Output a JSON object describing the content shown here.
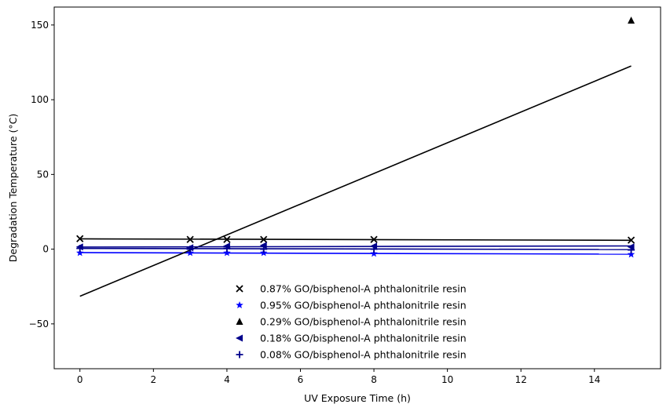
{
  "chart_data": {
    "type": "scatter",
    "title": "",
    "xlabel": "UV Exposure Time (h)",
    "ylabel": "Degradation Temperature (°C)",
    "xlim": [
      -0.7,
      15.8
    ],
    "ylim": [
      -80,
      162
    ],
    "xticks": [
      0,
      2,
      4,
      6,
      8,
      10,
      12,
      14
    ],
    "xtick_labels": [
      "0",
      "2",
      "4",
      "6",
      "8",
      "10",
      "12",
      "14"
    ],
    "yticks": [
      -50,
      0,
      50,
      100,
      150
    ],
    "ytick_labels": [
      "−50",
      "0",
      "50",
      "100",
      "150"
    ],
    "grid": false,
    "legend_position": "lower-center",
    "series": [
      {
        "name": "0.87% GO/bisphenol-A phthalonitrile resin",
        "marker": "x",
        "color": "#000000",
        "x": [
          0,
          3,
          4,
          5,
          8,
          15
        ],
        "y": [
          7,
          6.5,
          6.5,
          6.5,
          6.5,
          6
        ],
        "fit": {
          "slope": -0.065,
          "intercept": 6.9
        }
      },
      {
        "name": "0.95% GO/bisphenol-A phthalonitrile resin",
        "marker": "star",
        "color": "#0000ff",
        "x": [
          0,
          3,
          4,
          5,
          8,
          15
        ],
        "y": [
          -2.5,
          -2.5,
          -2.5,
          -2.5,
          -3,
          -3.5
        ],
        "fit": {
          "slope": -0.07,
          "intercept": -2.3
        }
      },
      {
        "name": "0.29% GO/bisphenol-A phthalonitrile resin",
        "marker": "triangle",
        "color": "#000000",
        "x": [
          15
        ],
        "y": [
          153
        ],
        "fit": {
          "slope": 10.27,
          "intercept": -31.5
        }
      },
      {
        "name": "0.18% GO/bisphenol-A phthalonitrile resin",
        "marker": "triangle-left",
        "color": "#00008b",
        "x": [
          0,
          3,
          4,
          5,
          8,
          15
        ],
        "y": [
          1.5,
          1,
          2,
          2.5,
          2,
          1.5
        ],
        "fit": {
          "slope": 0.05,
          "intercept": 1.4
        }
      },
      {
        "name": "0.08% GO/bisphenol-A phthalonitrile resin",
        "marker": "plus",
        "color": "#00008b",
        "x": [
          0,
          3,
          4,
          5,
          8,
          15
        ],
        "y": [
          0.5,
          0,
          0.5,
          0,
          0,
          -0.5
        ],
        "fit": {
          "slope": -0.05,
          "intercept": 0.5
        }
      }
    ]
  }
}
